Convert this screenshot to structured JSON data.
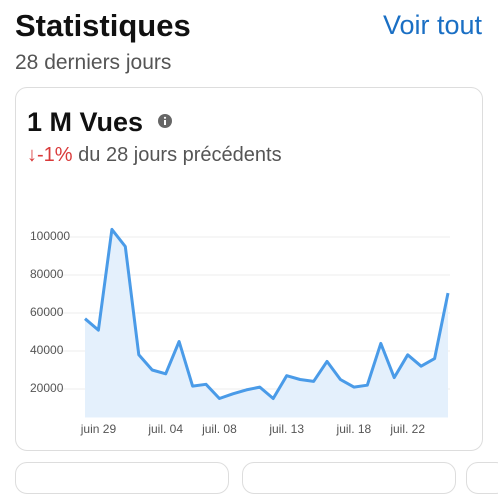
{
  "header": {
    "title": "Statistiques",
    "link": "Voir tout",
    "subtitle": "28 derniers jours"
  },
  "card": {
    "headline": "1 M Vues",
    "change": "↓-1%",
    "comparison": "du 28 jours précédents"
  },
  "chart_data": {
    "type": "line",
    "categories": [
      null,
      "juin 29",
      null,
      null,
      null,
      null,
      "juil. 04",
      null,
      null,
      null,
      "juil. 08",
      null,
      null,
      null,
      null,
      "juil. 13",
      null,
      null,
      null,
      null,
      "juil. 18",
      null,
      null,
      null,
      "juil. 22",
      null,
      null,
      null
    ],
    "series": [
      {
        "color": "#4a9be8",
        "values": [
          57000,
          51000,
          104000,
          95000,
          38000,
          30000,
          28000,
          45000,
          21500,
          22500,
          15000,
          17500,
          19500,
          21000,
          15000,
          27000,
          25000,
          24000,
          34500,
          25000,
          21000,
          22000,
          44000,
          26000,
          38000,
          32000,
          36000,
          70500
        ]
      }
    ],
    "ylim": [
      5000,
      110000
    ],
    "yticks": [
      20000,
      40000,
      60000,
      80000,
      100000
    ],
    "grid": true
  }
}
